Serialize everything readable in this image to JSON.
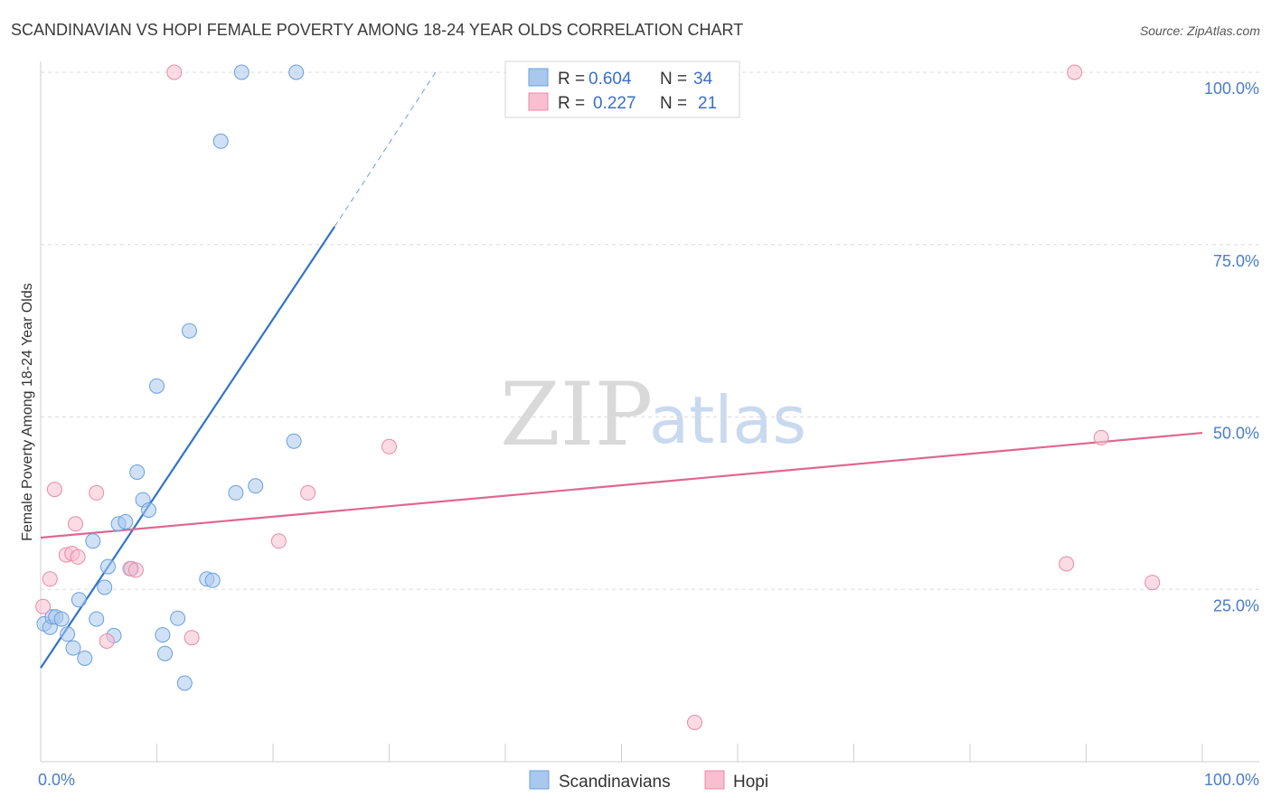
{
  "header": {
    "title": "SCANDINAVIAN VS HOPI FEMALE POVERTY AMONG 18-24 YEAR OLDS CORRELATION CHART",
    "source": "Source: ZipAtlas.com"
  },
  "watermark": {
    "zip": "ZIP",
    "atlas": "atlas"
  },
  "colors": {
    "blue_fill": "#a9c8ee",
    "blue_stroke": "#6a9fdd",
    "blue_line": "#2f73cc",
    "pink_fill": "#f7bfd0",
    "pink_stroke": "#e98aa8",
    "pink_line": "#e0678f",
    "grid": "#dcdcdc",
    "tick_label": "#4a7cc7"
  },
  "legend": {
    "rows": [
      {
        "r_label": "R =",
        "r_value": "0.604",
        "n_label": "N =",
        "n_value": "34"
      },
      {
        "r_label": "R =",
        "r_value": "0.227",
        "n_label": "N =",
        "n_value": "21"
      }
    ]
  },
  "bottom_legend": {
    "items": [
      {
        "label": "Scandinavians"
      },
      {
        "label": "Hopi"
      }
    ]
  },
  "chart_data": {
    "type": "scatter",
    "title": "SCANDINAVIAN VS HOPI FEMALE POVERTY AMONG 18-24 YEAR OLDS CORRELATION CHART",
    "xlabel": "",
    "ylabel": "Female Poverty Among 18-24 Year Olds",
    "xlim": [
      0,
      100
    ],
    "ylim": [
      0,
      102
    ],
    "x_tick_labels": [
      "0.0%",
      "100.0%"
    ],
    "y_ticks": [
      25,
      50,
      75,
      100
    ],
    "y_tick_labels": [
      "25.0%",
      "50.0%",
      "75.0%",
      "100.0%"
    ],
    "legend_position": "top-center",
    "series": [
      {
        "name": "Scandinavians",
        "R": 0.604,
        "N": 34,
        "points": [
          [
            0.3,
            20.0
          ],
          [
            0.8,
            19.5
          ],
          [
            1.0,
            21.0
          ],
          [
            1.3,
            21.0
          ],
          [
            1.8,
            20.7
          ],
          [
            2.3,
            18.5
          ],
          [
            2.8,
            16.5
          ],
          [
            3.3,
            23.5
          ],
          [
            3.8,
            15.0
          ],
          [
            4.5,
            32.0
          ],
          [
            4.8,
            20.7
          ],
          [
            5.5,
            25.3
          ],
          [
            5.8,
            28.3
          ],
          [
            6.3,
            18.3
          ],
          [
            6.7,
            34.5
          ],
          [
            7.3,
            34.8
          ],
          [
            7.8,
            28.0
          ],
          [
            8.3,
            42.0
          ],
          [
            8.8,
            38.0
          ],
          [
            9.3,
            36.5
          ],
          [
            10.0,
            54.5
          ],
          [
            10.5,
            18.4
          ],
          [
            10.7,
            15.7
          ],
          [
            11.8,
            20.8
          ],
          [
            12.4,
            11.4
          ],
          [
            12.8,
            62.5
          ],
          [
            14.3,
            26.5
          ],
          [
            14.8,
            26.3
          ],
          [
            15.5,
            90.0
          ],
          [
            16.8,
            39.0
          ],
          [
            17.3,
            100.0
          ],
          [
            18.5,
            40.0
          ],
          [
            21.8,
            46.5
          ],
          [
            22.0,
            100.0
          ]
        ],
        "trend": {
          "x": [
            0,
            25.3
          ],
          "y": [
            13.6,
            77.6
          ],
          "dash_x": [
            25.3,
            34.0
          ],
          "dash_y": [
            77.6,
            100
          ]
        }
      },
      {
        "name": "Hopi",
        "R": 0.227,
        "N": 21,
        "points": [
          [
            0.2,
            22.5
          ],
          [
            0.8,
            26.5
          ],
          [
            1.2,
            39.5
          ],
          [
            2.2,
            30.0
          ],
          [
            2.7,
            30.2
          ],
          [
            3.0,
            34.5
          ],
          [
            3.2,
            29.7
          ],
          [
            4.8,
            39.0
          ],
          [
            5.7,
            17.5
          ],
          [
            7.7,
            28.0
          ],
          [
            8.2,
            27.8
          ],
          [
            11.5,
            100.0
          ],
          [
            13.0,
            18.0
          ],
          [
            20.5,
            32.0
          ],
          [
            23.0,
            39.0
          ],
          [
            30.0,
            45.7
          ],
          [
            56.3,
            5.7
          ],
          [
            88.3,
            28.7
          ],
          [
            89.0,
            100.0
          ],
          [
            91.3,
            47.0
          ],
          [
            95.7,
            26.0
          ]
        ],
        "trend": {
          "x": [
            0,
            100
          ],
          "y": [
            32.5,
            47.7
          ]
        }
      }
    ]
  }
}
